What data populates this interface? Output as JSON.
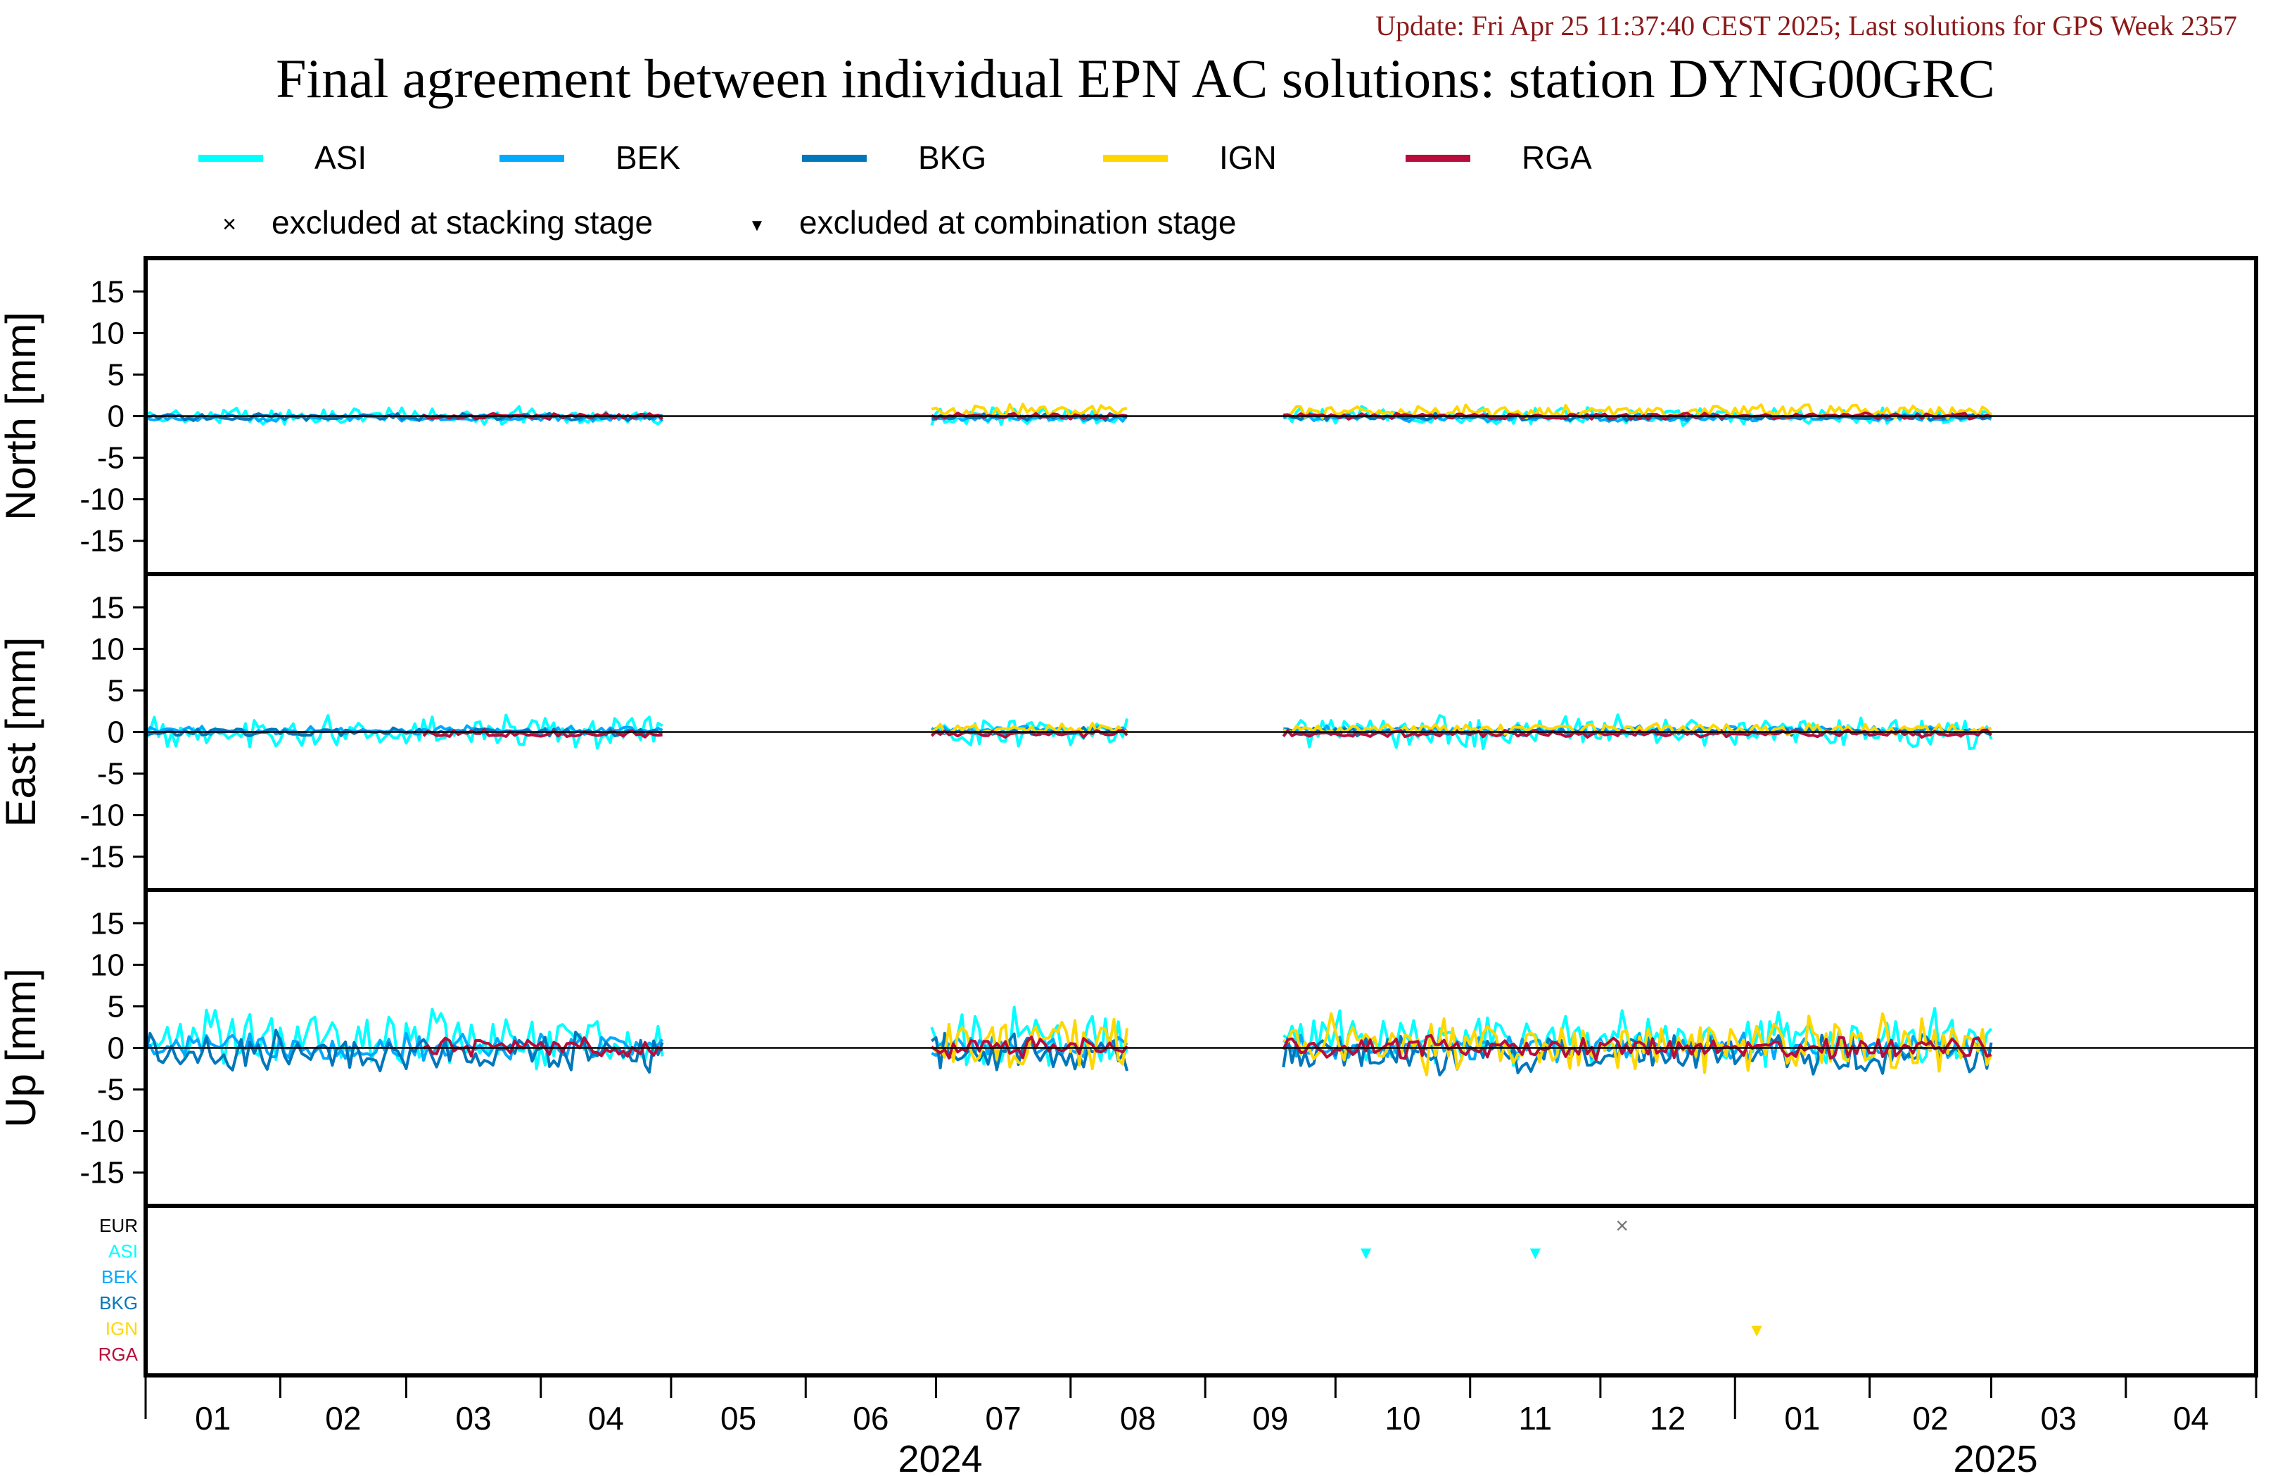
{
  "header": {
    "update_line": "Update: Fri Apr 25 11:37:40 CEST 2025; Last solutions for GPS Week 2357",
    "title": "Final agreement between individual EPN AC solutions: station DYNG00GRC"
  },
  "colors": {
    "ASI": "#00ffff",
    "BEK": "#00aaff",
    "BKG": "#0077bb",
    "IGN": "#ffd700",
    "RGA": "#b80d3b",
    "EUR": "#000000",
    "header_red": "#8b1a1a"
  },
  "legend": {
    "series": [
      {
        "name": "ASI",
        "color": "#00ffff"
      },
      {
        "name": "BEK",
        "color": "#00aaff"
      },
      {
        "name": "BKG",
        "color": "#0077bb"
      },
      {
        "name": "IGN",
        "color": "#ffd700"
      },
      {
        "name": "RGA",
        "color": "#b80d3b"
      }
    ],
    "markers": [
      {
        "symbol": "×",
        "label": "excluded at stacking stage"
      },
      {
        "symbol": "▼",
        "label": "excluded at combination stage"
      }
    ]
  },
  "chart_data": {
    "type": "line",
    "x_axis": {
      "month_labels": [
        "01",
        "02",
        "03",
        "04",
        "05",
        "06",
        "07",
        "08",
        "09",
        "10",
        "11",
        "12",
        "01",
        "02",
        "03",
        "04"
      ],
      "year_labels": [
        "2024",
        "2025"
      ]
    },
    "panels": [
      {
        "ylabel": "North [mm]",
        "ylim": [
          -19,
          19
        ],
        "yticks": [
          15,
          10,
          5,
          0,
          -5,
          -10,
          -15
        ]
      },
      {
        "ylabel": "East [mm]",
        "ylim": [
          -19,
          19
        ],
        "yticks": [
          15,
          10,
          5,
          0,
          -5,
          -10,
          -15
        ]
      },
      {
        "ylabel": "Up [mm]",
        "ylim": [
          -19,
          19
        ],
        "yticks": [
          15,
          10,
          5,
          0,
          -5,
          -10,
          -15
        ]
      }
    ],
    "data_windows": [
      {
        "from": "2024-01-01",
        "to": "2024-04-29"
      },
      {
        "from": "2024-06-30",
        "to": "2024-08-14"
      },
      {
        "from": "2024-09-19",
        "to": "2025-03-01"
      }
    ],
    "series_amplitude_mm": {
      "North": {
        "ASI": 0.9,
        "BEK": 0.35,
        "BKG": 0.35,
        "IGN": 0.7,
        "RGA": 0.3
      },
      "East": {
        "ASI": 1.6,
        "BEK": 0.45,
        "BKG": 0.4,
        "IGN": 0.6,
        "RGA": 0.35
      },
      "Up": {
        "ASI": 2.8,
        "BEK": 1.4,
        "BKG": 2.0,
        "IGN": 2.8,
        "RGA": 1.1
      }
    },
    "series_offset_mm": {
      "North": {
        "ASI": 0,
        "BEK": -0.2,
        "BKG": -0.1,
        "IGN": 0.6,
        "RGA": 0
      },
      "East": {
        "ASI": 0,
        "BEK": 0.2,
        "BKG": 0,
        "IGN": 0.3,
        "RGA": -0.2
      },
      "Up": {
        "ASI": 1.0,
        "BEK": 0.0,
        "BKG": -0.5,
        "IGN": 0.5,
        "RGA": 0
      }
    },
    "exclusions": {
      "rows": [
        "EUR",
        "ASI",
        "BEK",
        "BKG",
        "IGN",
        "RGA"
      ],
      "markers": [
        {
          "row": "ASI",
          "date": "2024-10-08",
          "symbol": "▼"
        },
        {
          "row": "ASI",
          "date": "2024-11-16",
          "symbol": "▼"
        },
        {
          "row": "EUR",
          "date": "2024-12-06",
          "symbol": "×"
        },
        {
          "row": "IGN",
          "date": "2025-01-06",
          "symbol": "▼"
        }
      ]
    }
  }
}
